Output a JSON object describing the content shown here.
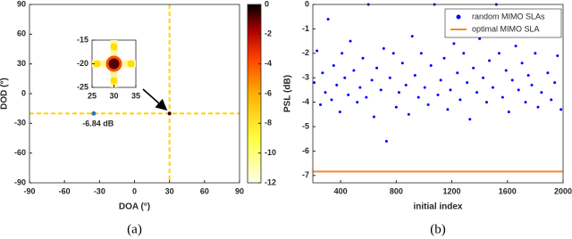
{
  "chart_data": [
    {
      "type": "heatmap",
      "xlabel": "DOA (°)",
      "ylabel": "DOD (°)",
      "xlim": [
        -90,
        90
      ],
      "xticks": [
        -90,
        -60,
        -30,
        0,
        30,
        60,
        90
      ],
      "ylim": [
        -90,
        90
      ],
      "yticks": [
        -90,
        -60,
        -30,
        0,
        30,
        60,
        90
      ],
      "clim": [
        -12,
        0
      ],
      "cticks": [
        -12,
        -10,
        -8,
        -6,
        -4,
        -2,
        0
      ],
      "peak": {
        "x": 30,
        "y": -20,
        "value": 0
      },
      "sidelobe": {
        "x": -35,
        "y": -20,
        "value": -6.84,
        "value_label": "-6.84 dB"
      },
      "inset": {
        "xlim": [
          25,
          35
        ],
        "xticks": [
          25,
          30,
          35
        ],
        "ylim": [
          -25,
          -15
        ],
        "yticks": [
          -25,
          -20,
          -15
        ]
      },
      "caption": "(a)"
    },
    {
      "type": "scatter",
      "xlabel": "initial index",
      "ylabel": "PSL (dB)",
      "xlim": [
        200,
        2000
      ],
      "xticks": [
        400,
        800,
        1200,
        1600,
        2000
      ],
      "ylim": [
        -7.3,
        0
      ],
      "yticks": [
        -7,
        -6,
        -5,
        -4,
        -3,
        -2,
        -1,
        0
      ],
      "legend": "upper right",
      "caption": "(b)",
      "series": [
        {
          "name": "random MIMO SLAs",
          "color": "#0000ff",
          "type": "scatter",
          "x": [
            210,
            230,
            255,
            270,
            290,
            310,
            335,
            350,
            372,
            395,
            410,
            430,
            455,
            470,
            495,
            520,
            540,
            560,
            585,
            600,
            625,
            640,
            660,
            690,
            710,
            730,
            755,
            780,
            800,
            820,
            845,
            870,
            890,
            915,
            935,
            960,
            980,
            1005,
            1030,
            1050,
            1075,
            1100,
            1120,
            1145,
            1170,
            1190,
            1215,
            1240,
            1260,
            1285,
            1310,
            1330,
            1355,
            1380,
            1400,
            1425,
            1450,
            1470,
            1495,
            1520,
            1540,
            1565,
            1590,
            1610,
            1635,
            1660,
            1680,
            1705,
            1730,
            1750,
            1775,
            1800,
            1820,
            1845,
            1870,
            1890,
            1915,
            1940,
            1960,
            1985
          ],
          "values": [
            -3.2,
            -1.9,
            -4.1,
            -2.8,
            -3.6,
            -0.6,
            -3.9,
            -2.5,
            -3.3,
            -4.4,
            -2.0,
            -3.0,
            -3.7,
            -1.5,
            -2.7,
            -4.0,
            -3.4,
            -2.2,
            -3.8,
            0,
            -3.1,
            -4.6,
            -2.6,
            -3.5,
            -1.8,
            -5.6,
            -3.0,
            -2.0,
            -4.2,
            -3.6,
            -2.4,
            -3.3,
            -4.5,
            -1.3,
            -2.9,
            -3.8,
            -2.0,
            -3.4,
            -4.1,
            -2.5,
            0,
            -3.7,
            -3.1,
            -2.2,
            -4.3,
            -3.5,
            -1.6,
            -2.8,
            -3.9,
            -2.0,
            -3.2,
            -4.7,
            -2.6,
            -3.6,
            -1.4,
            -3.0,
            -4.0,
            -2.3,
            -3.4,
            0,
            -2.0,
            -3.8,
            -2.7,
            -4.4,
            -3.1,
            -1.7,
            -3.5,
            -2.4,
            -4.0,
            -2.9,
            -3.3,
            -2.0,
            -4.2,
            -3.6,
            -1.2,
            -2.8,
            -3.9,
            -3.2,
            -2.1,
            -4.3
          ]
        },
        {
          "name": "optimal MIMO SLA",
          "color": "#f28a30",
          "type": "line",
          "x": [
            200,
            2000
          ],
          "values": [
            -6.84,
            -6.84
          ]
        }
      ]
    }
  ]
}
